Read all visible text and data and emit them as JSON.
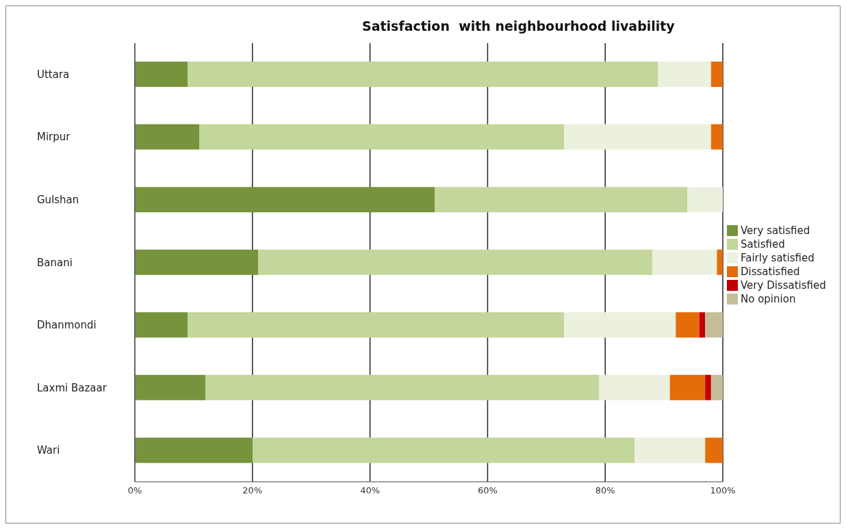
{
  "chart_data": {
    "type": "bar",
    "orientation": "horizontal",
    "stacked": true,
    "title": "Satisfaction  with neighbourhood livability",
    "categories": [
      "Uttara",
      "Mirpur",
      "Gulshan",
      "Banani",
      "Dhanmondi",
      "Laxmi Bazaar",
      "Wari"
    ],
    "series": [
      {
        "name": "Very satisfied",
        "color": "#77933c",
        "values": [
          9,
          11,
          51,
          21,
          9,
          12,
          20
        ]
      },
      {
        "name": "Satisfied",
        "color": "#c3d69b",
        "values": [
          80,
          62,
          43,
          67,
          64,
          67,
          65
        ]
      },
      {
        "name": "Fairly satisfied",
        "color": "#ebf1de",
        "values": [
          9,
          25,
          6,
          11,
          19,
          12,
          12
        ]
      },
      {
        "name": "Dissatisfied",
        "color": "#e46c0a",
        "values": [
          2,
          2,
          null,
          1,
          4,
          6,
          3
        ]
      },
      {
        "name": "Very Dissatisfied",
        "color": "#c00000",
        "values": [
          null,
          null,
          null,
          null,
          1,
          1,
          null
        ]
      },
      {
        "name": "No opinion",
        "color": "#c4bd97",
        "values": [
          null,
          null,
          null,
          null,
          3,
          2,
          null
        ]
      }
    ],
    "xlim": [
      0,
      100
    ],
    "xticks": [
      {
        "value": 0,
        "label": "0%"
      },
      {
        "value": 20,
        "label": "20%"
      },
      {
        "value": 40,
        "label": "40%"
      },
      {
        "value": 60,
        "label": "60%"
      },
      {
        "value": 80,
        "label": "80%"
      },
      {
        "value": 100,
        "label": "100%"
      }
    ],
    "grid": "x",
    "legend": "right"
  }
}
